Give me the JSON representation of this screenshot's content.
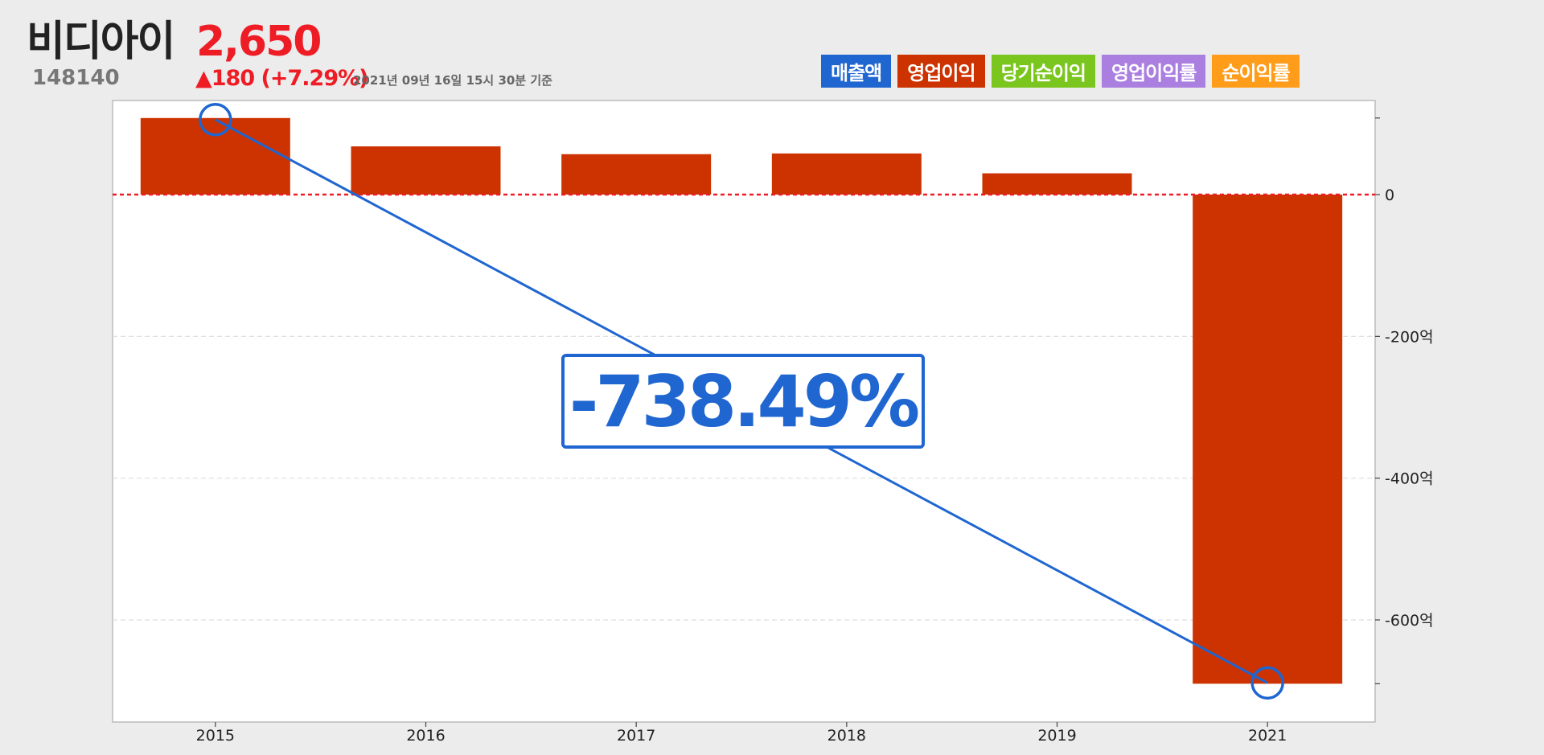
{
  "stock": {
    "name": "비디아이",
    "price": "2,650",
    "code": "148140",
    "change": "▲180 (+7.29%)",
    "as_of": "2021년 09년 16일 15시 30분 기준"
  },
  "legend": [
    {
      "label": "매출액",
      "color": "#1f66d1"
    },
    {
      "label": "영업이익",
      "color": "#cc3300"
    },
    {
      "label": "당기순이익",
      "color": "#7ac51e"
    },
    {
      "label": "영업이익률",
      "color": "#aa7fe0"
    },
    {
      "label": "순이익률",
      "color": "#ff9d1a"
    }
  ],
  "callout": {
    "text": "-738.49%"
  },
  "chart_data": {
    "type": "bar",
    "categories": [
      "2015",
      "2016",
      "2017",
      "2018",
      "2019",
      "2021"
    ],
    "series": [
      {
        "name": "영업이익",
        "color": "#cc3300",
        "values": [
          108,
          68,
          57,
          58,
          30,
          -690
        ]
      }
    ],
    "trend_line": {
      "color": "#1f66d1",
      "from_category": "2015",
      "to_category": "2021",
      "from_value": 108,
      "to_value": -690
    },
    "y_ticks": [
      {
        "value": 0,
        "label": "0"
      },
      {
        "value": -200,
        "label": "-200억"
      },
      {
        "value": -400,
        "label": "-400억"
      },
      {
        "value": -600,
        "label": "-600억"
      }
    ],
    "ylim": [
      -740,
      130
    ],
    "zero_line_color": "#ee1c25",
    "grid": "horizontal-dashed"
  }
}
